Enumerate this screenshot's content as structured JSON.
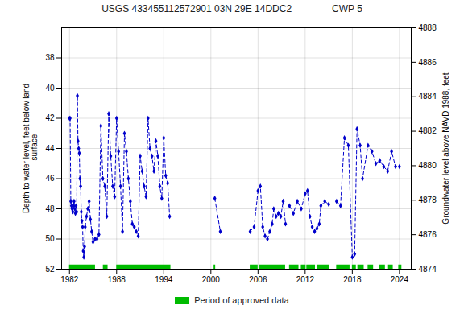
{
  "chart_data": {
    "type": "line",
    "title": "USGS 433455112572901 03N 29E 14DDC2               CWP 5",
    "ylabel": "Depth to water level, feet below land\n surface",
    "y2label": "Groundwater level above NAVD 1988, feet",
    "x": [
      1982.0,
      1982.08,
      1982.17,
      1982.25,
      1982.33,
      1982.42,
      1982.5,
      1982.58,
      1982.67,
      1982.75,
      1982.83,
      1982.92,
      1983.0,
      1983.08,
      1983.17,
      1983.25,
      1983.33,
      1983.42,
      1983.5,
      1983.58,
      1983.67,
      1983.75,
      1983.83,
      1983.92,
      1984.0,
      1984.17,
      1984.33,
      1984.5,
      1984.67,
      1984.83,
      1985.0,
      1985.25,
      1985.5,
      1985.75,
      1986.0,
      1986.25,
      1986.5,
      1986.75,
      1987.0,
      1987.25,
      1987.5,
      1987.75,
      1988.0,
      1988.25,
      1988.5,
      1988.75,
      1989.0,
      1989.25,
      1989.5,
      1989.75,
      1990.0,
      1990.25,
      1990.5,
      1990.75,
      1991.0,
      1991.25,
      1991.5,
      1991.75,
      1992.0,
      1992.25,
      1992.5,
      1992.75,
      1993.0,
      1993.25,
      1993.5,
      1993.75,
      1994.0,
      1994.25,
      1994.5,
      1994.75,
      null,
      2000.5,
      2001.2,
      null,
      2005.0,
      2005.5,
      2006.0,
      2006.3,
      2006.6,
      2006.9,
      2007.2,
      2007.5,
      2007.8,
      2008.0,
      2008.3,
      2008.6,
      2008.9,
      2009.2,
      2009.5,
      null,
      2010.0,
      2010.5,
      2011.0,
      2011.5,
      2012.0,
      2012.3,
      2012.6,
      2012.9,
      2013.2,
      2013.5,
      2013.8,
      2014.0,
      2014.5,
      2015.0,
      null,
      2016.0,
      2016.5,
      2017.0,
      2017.5,
      2018.0,
      2018.3,
      2018.6,
      2019.0,
      2019.3,
      2020.0,
      2020.5,
      2021.0,
      2021.5,
      2022.0,
      2022.5,
      2023.0,
      2023.5,
      2024.0
    ],
    "values": [
      42.0,
      42.0,
      47.5,
      47.8,
      48.0,
      48.2,
      47.8,
      47.5,
      48.0,
      48.3,
      47.8,
      48.2,
      40.5,
      43.5,
      44.0,
      44.3,
      46.0,
      46.5,
      48.2,
      48.8,
      49.2,
      50.8,
      51.2,
      50.5,
      49.2,
      48.5,
      48.0,
      47.5,
      48.7,
      49.5,
      50.2,
      50.0,
      50.0,
      49.7,
      42.5,
      46.0,
      46.5,
      48.5,
      41.7,
      44.5,
      46.5,
      47.2,
      42.0,
      44.2,
      46.5,
      49.5,
      43.0,
      44.2,
      46.0,
      47.5,
      49.0,
      49.2,
      49.5,
      49.8,
      44.5,
      45.5,
      46.5,
      47.2,
      42.0,
      44.0,
      44.5,
      45.5,
      43.5,
      44.5,
      46.5,
      47.3,
      43.3,
      45.8,
      46.3,
      48.5,
      null,
      47.3,
      49.5,
      null,
      49.5,
      49.2,
      46.8,
      46.5,
      49.2,
      49.8,
      50.0,
      49.5,
      49.0,
      48.0,
      48.5,
      48.3,
      48.5,
      47.5,
      49.0,
      null,
      47.8,
      48.3,
      47.5,
      48.0,
      47.0,
      46.8,
      48.5,
      49.2,
      49.5,
      49.3,
      49.0,
      47.8,
      47.5,
      47.7,
      null,
      47.5,
      47.8,
      43.3,
      43.8,
      51.2,
      51.0,
      42.7,
      43.8,
      46.0,
      43.8,
      44.2,
      45.0,
      44.8,
      45.2,
      45.5,
      44.2,
      45.2,
      45.2
    ],
    "color": "#0000cc",
    "marker": "diamond",
    "line_style": "dashed",
    "approved_periods": {
      "name": "Period of approved data",
      "color": "#00bb00",
      "ranges": [
        [
          1982.0,
          1985.3
        ],
        [
          1986.3,
          1986.9
        ],
        [
          1988.0,
          1994.9
        ],
        [
          2000.4,
          2000.6
        ],
        [
          2005.0,
          2006.0
        ],
        [
          2006.2,
          2009.5
        ],
        [
          2010.0,
          2011.2
        ],
        [
          2011.5,
          2012.1
        ],
        [
          2012.2,
          2013.3
        ],
        [
          2013.5,
          2015.1
        ],
        [
          2016.0,
          2017.7
        ],
        [
          2018.0,
          2018.5
        ],
        [
          2018.7,
          2019.5
        ],
        [
          2020.0,
          2020.7
        ],
        [
          2021.5,
          2022.2
        ],
        [
          2022.6,
          2023.2
        ],
        [
          2023.9,
          2024.3
        ]
      ]
    },
    "xlim": [
      1981.0,
      2025.5
    ],
    "xticks": [
      1982,
      1988,
      1994,
      2000,
      2006,
      2012,
      2018,
      2024
    ],
    "ylim": [
      52,
      36
    ],
    "yticks": [
      38,
      40,
      42,
      44,
      46,
      48,
      50,
      52
    ],
    "y2lim": [
      4874,
      4888
    ],
    "y2ticks": [
      4874,
      4876,
      4878,
      4880,
      4882,
      4884,
      4886,
      4888
    ],
    "grid": true,
    "legend": "bottom"
  }
}
